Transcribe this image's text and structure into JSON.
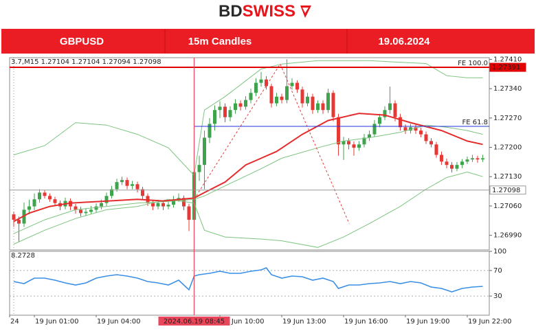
{
  "header": {
    "logo_dark": "BD",
    "logo_red": "SWISS",
    "symbol": "GBPUSD",
    "timeframe": "15m Candles",
    "date": "19.06.2024"
  },
  "chart_data": [
    {
      "type": "candlestick",
      "info_text": "3.7,M15  1.27104 1.27104 1.27094 1.27098",
      "up_color": "#3fa34d",
      "down_color": "#e53935",
      "xlim": [
        -0.8,
        92.27
      ],
      "xticks": [
        {
          "value": -0.8,
          "label": "24"
        },
        {
          "value": 4,
          "label": "19 Jun 01:00"
        },
        {
          "value": 16,
          "label": "19 Jun 04:00"
        },
        {
          "value": 40,
          "label": "19 Jun 10:00"
        },
        {
          "value": 52,
          "label": "19 Jun 13:00"
        },
        {
          "value": 64,
          "label": "19 Jun 16:00"
        },
        {
          "value": 76,
          "label": "19 Jun 19:00"
        },
        {
          "value": 88,
          "label": "19 Jun 22:00"
        }
      ],
      "crosshair": {
        "x": 35,
        "label": "2024.06.19 08:45",
        "color": "#e8465a"
      },
      "ylim": [
        1.26955,
        1.27414
      ],
      "yticks": [
        {
          "value": 1.2741,
          "label": "1.27410"
        },
        {
          "value": 1.2734,
          "label": "1.27340"
        },
        {
          "value": 1.2727,
          "label": "1.27270"
        },
        {
          "value": 1.272,
          "label": "1.27200"
        },
        {
          "value": 1.2713,
          "label": "1.27130"
        },
        {
          "value": 1.2706,
          "label": "1.27060"
        },
        {
          "value": 1.2699,
          "label": "1.26990"
        }
      ],
      "candles": [
        [
          1.2704,
          1.27046,
          1.2701,
          1.27027
        ],
        [
          1.27027,
          1.27035,
          1.26975,
          1.27018
        ],
        [
          1.27018,
          1.27068,
          1.2701,
          1.27051
        ],
        [
          1.27051,
          1.27075,
          1.2704,
          1.27059
        ],
        [
          1.27059,
          1.2709,
          1.2705,
          1.27076
        ],
        [
          1.27076,
          1.271,
          1.27068,
          1.27092
        ],
        [
          1.27092,
          1.27098,
          1.27078,
          1.27084
        ],
        [
          1.27084,
          1.2709,
          1.2707,
          1.27076
        ],
        [
          1.27076,
          1.27082,
          1.2706,
          1.27067
        ],
        [
          1.27067,
          1.27073,
          1.2705,
          1.27059
        ],
        [
          1.27059,
          1.2708,
          1.27052,
          1.27072
        ],
        [
          1.27072,
          1.27078,
          1.2705,
          1.27059
        ],
        [
          1.27059,
          1.27065,
          1.27042,
          1.27051
        ],
        [
          1.27051,
          1.27058,
          1.27035,
          1.27043
        ],
        [
          1.27043,
          1.27055,
          1.27036,
          1.27046
        ],
        [
          1.27046,
          1.2706,
          1.2704,
          1.27051
        ],
        [
          1.27051,
          1.27066,
          1.27044,
          1.27059
        ],
        [
          1.27059,
          1.27075,
          1.27052,
          1.27067
        ],
        [
          1.27067,
          1.27092,
          1.2706,
          1.27084
        ],
        [
          1.27084,
          1.27108,
          1.27078,
          1.271
        ],
        [
          1.271,
          1.27125,
          1.27094,
          1.27117
        ],
        [
          1.27117,
          1.2713,
          1.2711,
          1.27122
        ],
        [
          1.27122,
          1.27128,
          1.271,
          1.27108
        ],
        [
          1.27108,
          1.2712,
          1.271,
          1.27112
        ],
        [
          1.27112,
          1.27118,
          1.27092,
          1.271
        ],
        [
          1.271,
          1.27106,
          1.27076,
          1.27084
        ],
        [
          1.27084,
          1.2709,
          1.2706,
          1.27067
        ],
        [
          1.27067,
          1.27073,
          1.2705,
          1.27059
        ],
        [
          1.27059,
          1.27075,
          1.27052,
          1.27067
        ],
        [
          1.27067,
          1.27073,
          1.2705,
          1.27059
        ],
        [
          1.27059,
          1.2707,
          1.27052,
          1.27063
        ],
        [
          1.27063,
          1.27084,
          1.27056,
          1.27076
        ],
        [
          1.27076,
          1.2709,
          1.2707,
          1.27079
        ],
        [
          1.27079,
          1.27085,
          1.2705,
          1.27059
        ],
        [
          1.27059,
          1.27065,
          1.27,
          1.27027
        ],
        [
          1.27027,
          1.2716,
          1.26995,
          1.27141
        ],
        [
          1.27141,
          1.2718,
          1.2712,
          1.27158
        ],
        [
          1.27158,
          1.2724,
          1.271,
          1.27223
        ],
        [
          1.27223,
          1.2727,
          1.2721,
          1.27256
        ],
        [
          1.27256,
          1.273,
          1.2724,
          1.27289
        ],
        [
          1.27289,
          1.2731,
          1.2727,
          1.27297
        ],
        [
          1.27297,
          1.27305,
          1.2726,
          1.27272
        ],
        [
          1.27272,
          1.27298,
          1.27262,
          1.27289
        ],
        [
          1.27289,
          1.27315,
          1.2728,
          1.27305
        ],
        [
          1.27305,
          1.27312,
          1.27288,
          1.27297
        ],
        [
          1.27297,
          1.27322,
          1.2729,
          1.27313
        ],
        [
          1.27313,
          1.2734,
          1.27305,
          1.2733
        ],
        [
          1.2733,
          1.27365,
          1.27322,
          1.27354
        ],
        [
          1.27354,
          1.2738,
          1.27345,
          1.27362
        ],
        [
          1.27362,
          1.2737,
          1.27338,
          1.27346
        ],
        [
          1.27346,
          1.27352,
          1.27295,
          1.27305
        ],
        [
          1.27305,
          1.2733,
          1.27298,
          1.27321
        ],
        [
          1.27321,
          1.27328,
          1.27305,
          1.27313
        ],
        [
          1.27313,
          1.2741,
          1.27305,
          1.27346
        ],
        [
          1.27346,
          1.27365,
          1.27338,
          1.27354
        ],
        [
          1.27354,
          1.2736,
          1.2733,
          1.27338
        ],
        [
          1.27338,
          1.27345,
          1.27295,
          1.27305
        ],
        [
          1.27305,
          1.2733,
          1.27298,
          1.27321
        ],
        [
          1.27321,
          1.27328,
          1.2728,
          1.27289
        ],
        [
          1.27289,
          1.27312,
          1.27282,
          1.27305
        ],
        [
          1.27305,
          1.27312,
          1.2728,
          1.27289
        ],
        [
          1.27289,
          1.2734,
          1.27282,
          1.2733
        ],
        [
          1.2733,
          1.27336,
          1.27262,
          1.27272
        ],
        [
          1.27272,
          1.2728,
          1.2718,
          1.27207
        ],
        [
          1.27207,
          1.27225,
          1.2717,
          1.27215
        ],
        [
          1.27215,
          1.27222,
          1.27195,
          1.27207
        ],
        [
          1.27207,
          1.27214,
          1.2718,
          1.27199
        ],
        [
          1.27199,
          1.27215,
          1.27192,
          1.27207
        ],
        [
          1.27207,
          1.27232,
          1.272,
          1.27223
        ],
        [
          1.27223,
          1.2724,
          1.27215,
          1.27231
        ],
        [
          1.27231,
          1.27265,
          1.27225,
          1.27256
        ],
        [
          1.27256,
          1.2728,
          1.27248,
          1.27272
        ],
        [
          1.27272,
          1.27298,
          1.27265,
          1.27289
        ],
        [
          1.27289,
          1.27345,
          1.2728,
          1.27305
        ],
        [
          1.27305,
          1.27312,
          1.27262,
          1.27272
        ],
        [
          1.27272,
          1.2728,
          1.2724,
          1.27248
        ],
        [
          1.27248,
          1.27255,
          1.27232,
          1.2724
        ],
        [
          1.2724,
          1.27256,
          1.27233,
          1.27248
        ],
        [
          1.27248,
          1.27255,
          1.27232,
          1.2724
        ],
        [
          1.2724,
          1.27247,
          1.27224,
          1.27231
        ],
        [
          1.27231,
          1.27238,
          1.27208,
          1.27215
        ],
        [
          1.27215,
          1.27222,
          1.272,
          1.27207
        ],
        [
          1.27207,
          1.27213,
          1.27175,
          1.27182
        ],
        [
          1.27182,
          1.2719,
          1.27158,
          1.27166
        ],
        [
          1.27166,
          1.27173,
          1.2715,
          1.27158
        ],
        [
          1.27158,
          1.27165,
          1.2714,
          1.27149
        ],
        [
          1.27149,
          1.27165,
          1.27143,
          1.27158
        ],
        [
          1.27158,
          1.27172,
          1.2715,
          1.27166
        ],
        [
          1.27166,
          1.27178,
          1.2716,
          1.27171
        ],
        [
          1.27171,
          1.27182,
          1.27165,
          1.27174
        ],
        [
          1.27174,
          1.2718,
          1.27163,
          1.27171
        ],
        [
          1.27171,
          1.27182,
          1.27165,
          1.27174
        ]
      ],
      "series": [
        {
          "color": "#7cc47f",
          "width": 1,
          "x": [
            0,
            6,
            12,
            18,
            24,
            30,
            35,
            37,
            41,
            48,
            52,
            59,
            64,
            69,
            75,
            80,
            84,
            88,
            91
          ],
          "values": [
            1.27182,
            1.27204,
            1.27259,
            1.27253,
            1.27231,
            1.27199,
            1.27133,
            1.27289,
            1.27321,
            1.27387,
            1.27399,
            1.27407,
            1.27407,
            1.27407,
            1.27403,
            1.274,
            1.27371,
            1.27366,
            1.27366
          ]
        },
        {
          "color": "#7cc47f",
          "width": 1,
          "x": [
            0,
            6,
            12,
            18,
            24,
            30,
            35,
            37,
            41,
            48,
            52,
            59,
            64,
            69,
            75,
            80,
            84,
            88,
            91
          ],
          "values": [
            1.26994,
            1.27027,
            1.27051,
            1.27059,
            1.27067,
            1.27071,
            1.27076,
            1.27084,
            1.27108,
            1.27149,
            1.27174,
            1.27199,
            1.27215,
            1.27223,
            1.27236,
            1.27253,
            1.27248,
            1.2724,
            1.27231
          ]
        },
        {
          "color": "#7cc47f",
          "width": 1,
          "x": [
            0,
            6,
            12,
            18,
            24,
            30,
            35,
            37,
            41,
            48,
            52,
            59,
            64,
            69,
            75,
            80,
            84,
            88,
            91
          ],
          "values": [
            1.26969,
            1.27002,
            1.2703,
            1.27051,
            1.27059,
            1.27076,
            1.27067,
            1.27002,
            1.26986,
            1.26981,
            1.26977,
            1.26961,
            1.26986,
            1.27018,
            1.27059,
            1.271,
            1.27128,
            1.27141,
            1.2713
          ]
        },
        {
          "color": "#e52b2b",
          "width": 2,
          "x": [
            0,
            3,
            7,
            11,
            17,
            24,
            29,
            35,
            37,
            41,
            45,
            51,
            56,
            61,
            67,
            72,
            77,
            83,
            88,
            91
          ],
          "values": [
            1.27023,
            1.27043,
            1.27059,
            1.27067,
            1.27071,
            1.27076,
            1.27072,
            1.27079,
            1.27092,
            1.27117,
            1.27158,
            1.2719,
            1.27231,
            1.27264,
            1.27281,
            1.27277,
            1.27259,
            1.2724,
            1.27215,
            1.27207
          ]
        },
        {
          "color": "#e53935",
          "width": 1,
          "dash": true,
          "x": [
            35,
            51.7,
            65.1
          ],
          "values": [
            1.27076,
            1.27399,
            1.27018
          ]
        }
      ],
      "hlines": [
        {
          "value": 1.27391,
          "color": "#e00000",
          "width": 2,
          "from": -0.8,
          "box": true,
          "box_fill": "#e00000",
          "box_text": "#ffffff",
          "tag": "FE 100.0",
          "tag_color": "#2233dd"
        },
        {
          "value": 1.2725,
          "color": "#2233dd",
          "width": 1,
          "from": 35,
          "tag": "FE 61.8",
          "tag_color": "#2233dd"
        },
        {
          "value": 1.27098,
          "color": "#999999",
          "width": 1,
          "from": -0.8,
          "box": true,
          "box_fill": "#ffffff",
          "box_text": "#000000"
        }
      ]
    },
    {
      "type": "line",
      "info_text": "8.2728",
      "color": "#3a8ee6",
      "ylim": [
        0,
        100
      ],
      "yticks": [
        100,
        70,
        30
      ],
      "x": [
        0,
        2,
        4,
        6,
        8,
        10,
        12,
        14,
        16,
        18,
        20,
        22,
        24,
        26,
        28,
        30,
        32,
        34,
        35,
        36,
        38,
        40,
        42,
        44,
        46,
        48,
        49,
        50,
        52,
        54,
        56,
        58,
        60,
        62,
        63,
        65,
        67,
        69,
        71,
        73,
        75,
        77,
        79,
        81,
        83,
        85,
        87,
        89,
        91
      ],
      "values": [
        52.7,
        49.5,
        58.1,
        58.1,
        54.8,
        50.5,
        47.3,
        50.5,
        58.1,
        61.3,
        63.4,
        61.3,
        58.1,
        52.7,
        50.5,
        47.3,
        54.8,
        39.8,
        61.3,
        63.4,
        65.6,
        68.8,
        65.6,
        65.6,
        68.8,
        71.0,
        74.2,
        63.4,
        58.1,
        61.3,
        60.2,
        54.8,
        58.1,
        52.7,
        41.9,
        47.3,
        47.3,
        49.5,
        50.5,
        52.7,
        49.5,
        52.7,
        50.5,
        44.1,
        41.9,
        36.6,
        41.9,
        44.1,
        45.2
      ]
    }
  ]
}
